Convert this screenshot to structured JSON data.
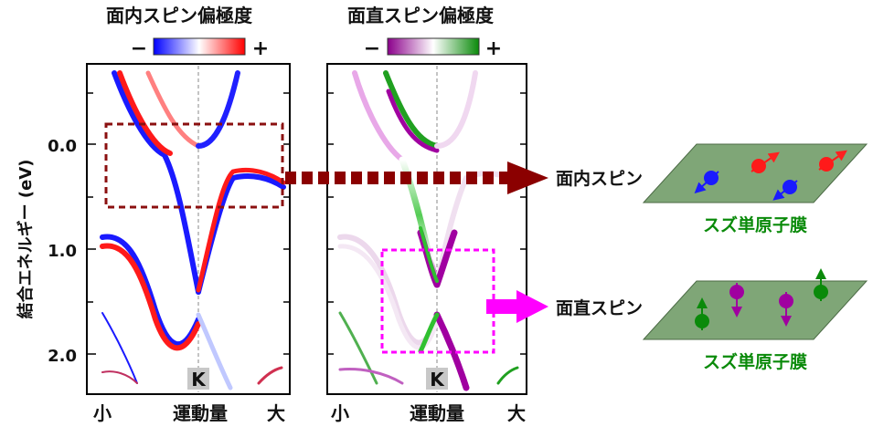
{
  "panel_left": {
    "title": "面内スピン偏極度",
    "scale_minus": "−",
    "scale_plus": "+",
    "k_label": "K",
    "x_small": "小",
    "x_mid": "運動量",
    "x_large": "大"
  },
  "panel_right": {
    "title": "面直スピン偏極度",
    "scale_minus": "−",
    "scale_plus": "+",
    "k_label": "K",
    "x_small": "小",
    "x_mid": "運動量",
    "x_large": "大"
  },
  "y_axis": {
    "label": "結合エネルギー (eV)",
    "ticks": [
      "0.0",
      "1.0",
      "2.0"
    ]
  },
  "schematic": {
    "in_plane_label": "面内スピン",
    "out_of_plane_label": "面直スピン",
    "film_label_1": "スズ単原子膜",
    "film_label_2": "スズ単原子膜"
  },
  "colors": {
    "in_plane_negative": "#1a1aff",
    "in_plane_positive": "#ff1a1a",
    "out_plane_negative": "#a000a0",
    "out_plane_positive": "#119911",
    "dark_red_arrow": "#8b0000",
    "magenta_arrow": "#ff00ff",
    "film": "#7fa677",
    "film_label": "#0a8a0a"
  }
}
